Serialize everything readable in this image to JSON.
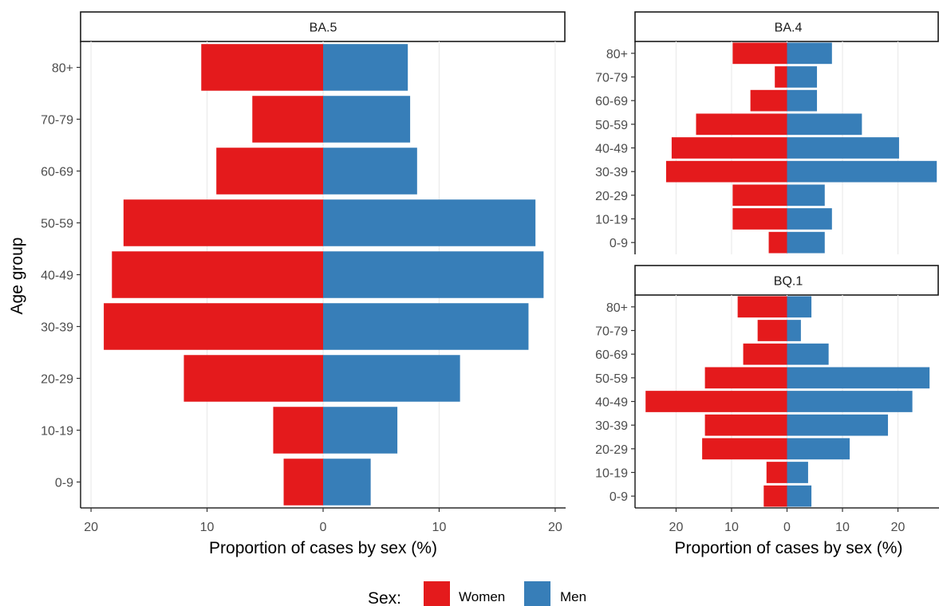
{
  "colors": {
    "women": "#e41a1c",
    "men": "#377eb8",
    "grid": "#ebebeb",
    "axis": "#000000"
  },
  "y_axis_title": "Age group",
  "legend": {
    "title": "Sex:",
    "items": [
      {
        "label": "Women",
        "color": "#e41a1c"
      },
      {
        "label": "Men",
        "color": "#377eb8"
      }
    ]
  },
  "chart_data": [
    {
      "type": "bar",
      "orientation": "horizontal-pyramid",
      "panel_title": "BA.5",
      "categories": [
        "0-9",
        "10-19",
        "20-29",
        "30-39",
        "40-49",
        "50-59",
        "60-69",
        "70-79",
        "80+"
      ],
      "series": [
        {
          "name": "Women",
          "values": [
            3.4,
            4.3,
            12.0,
            18.9,
            18.2,
            17.2,
            9.2,
            6.1,
            10.5
          ]
        },
        {
          "name": "Men",
          "values": [
            4.1,
            6.4,
            11.8,
            17.7,
            19.0,
            18.3,
            8.1,
            7.5,
            7.3
          ]
        }
      ],
      "xlabel": "Proportion of cases by sex (%)",
      "ylabel": "Age group",
      "xlim": [
        -20.9,
        20.9
      ],
      "xticks": [
        -20,
        -10,
        0,
        10,
        20
      ],
      "xtick_labels": [
        "20",
        "10",
        "0",
        "10",
        "20"
      ],
      "grid": true
    },
    {
      "type": "bar",
      "orientation": "horizontal-pyramid",
      "panel_title": "BA.4",
      "categories": [
        "0-9",
        "10-19",
        "20-29",
        "30-39",
        "40-49",
        "50-59",
        "60-69",
        "70-79",
        "80+"
      ],
      "series": [
        {
          "name": "Women",
          "values": [
            3.3,
            9.8,
            9.8,
            21.8,
            20.8,
            16.4,
            6.6,
            2.2,
            9.8
          ]
        },
        {
          "name": "Men",
          "values": [
            6.8,
            8.1,
            6.8,
            27.0,
            20.2,
            13.5,
            5.4,
            5.4,
            8.1
          ]
        }
      ],
      "xlabel": "",
      "xlim": [
        -27.4,
        27.4
      ],
      "xticks": [
        -20,
        -10,
        0,
        10,
        20
      ],
      "xtick_labels": [],
      "grid": true
    },
    {
      "type": "bar",
      "orientation": "horizontal-pyramid",
      "panel_title": "BQ.1",
      "categories": [
        "0-9",
        "10-19",
        "20-29",
        "30-39",
        "40-49",
        "50-59",
        "60-69",
        "70-79",
        "80+"
      ],
      "series": [
        {
          "name": "Women",
          "values": [
            4.2,
            3.7,
            15.3,
            14.8,
            25.5,
            14.8,
            7.9,
            5.3,
            8.9
          ]
        },
        {
          "name": "Men",
          "values": [
            4.4,
            3.8,
            11.3,
            18.2,
            22.6,
            25.7,
            7.5,
            2.5,
            4.4
          ]
        }
      ],
      "xlabel": "Proportion of cases by sex (%)",
      "xlim": [
        -27.4,
        27.4
      ],
      "xticks": [
        -20,
        -10,
        0,
        10,
        20
      ],
      "xtick_labels": [
        "20",
        "10",
        "0",
        "10",
        "20"
      ],
      "grid": true
    }
  ]
}
